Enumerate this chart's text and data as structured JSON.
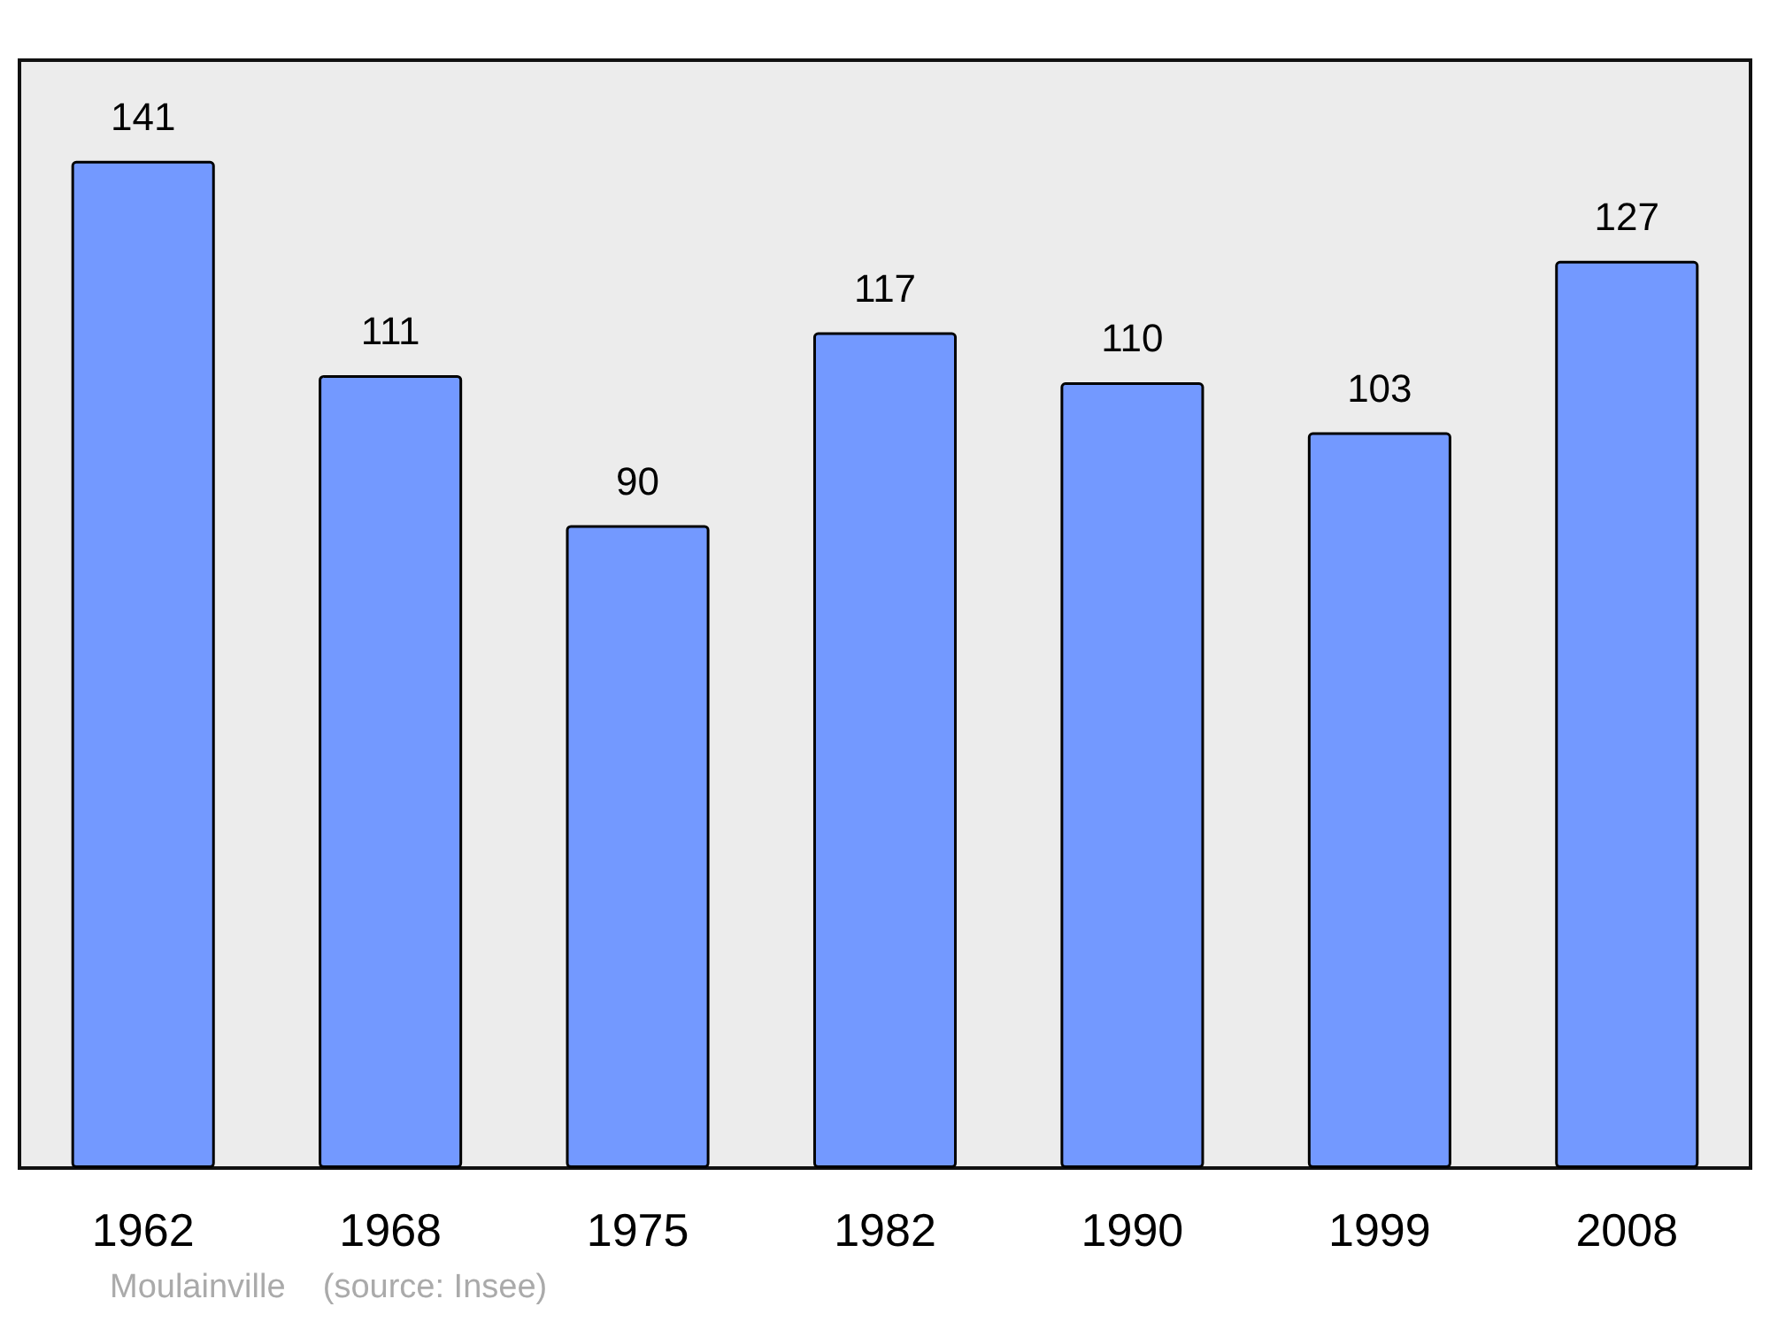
{
  "chart_data": {
    "type": "bar",
    "categories": [
      "1962",
      "1968",
      "1975",
      "1982",
      "1990",
      "1999",
      "2008"
    ],
    "values": [
      141,
      111,
      90,
      117,
      110,
      103,
      127
    ],
    "color": "#7399ff",
    "data_labels": true,
    "annotations": [
      "Moulainville    (source: Insee)"
    ]
  }
}
